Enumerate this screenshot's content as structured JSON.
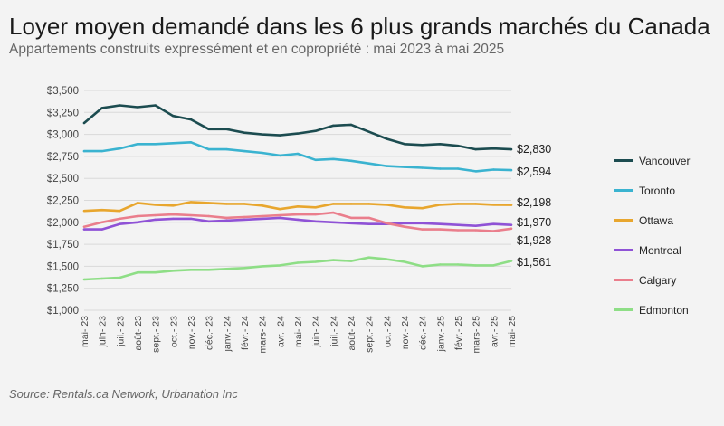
{
  "header": {
    "title": "Loyer moyen demandé dans les 6 plus grands marchés du Canada",
    "subtitle": "Appartements construits expressément et en copropriété : mai 2023 à mai 2025"
  },
  "footer": {
    "source": "Source: Rentals.ca Network, Urbanation Inc"
  },
  "chart_data": {
    "type": "line",
    "title": "Loyer moyen demandé dans les 6 plus grands marchés du Canada",
    "subtitle": "Appartements construits expressément et en copropriété : mai 2023 à mai 2025",
    "xlabel": "",
    "ylabel": "",
    "ylim": [
      1000,
      3500
    ],
    "yticks": [
      1000,
      1250,
      1500,
      1750,
      2000,
      2250,
      2500,
      2750,
      3000,
      3250,
      3500
    ],
    "ytick_labels": [
      "$1,000",
      "$1,250",
      "$1,500",
      "$1,750",
      "$2,000",
      "$2,250",
      "$2,500",
      "$2,750",
      "$3,000",
      "$3,250",
      "$3,500"
    ],
    "grid": true,
    "legend_position": "right",
    "categories": [
      "mai- 23",
      "juin- 23",
      "juil.- 23",
      "août- 23",
      "sept.- 23",
      "oct.- 23",
      "nov.- 23",
      "déc.- 23",
      "janv.- 24",
      "févr.- 24",
      "mars- 24",
      "avr.- 24",
      "mai- 24",
      "juin- 24",
      "juil.- 24",
      "août- 24",
      "sept.- 24",
      "oct.- 24",
      "nov.- 24",
      "déc.- 24",
      "janv.- 25",
      "févr.- 25",
      "mars- 25",
      "avr.- 25",
      "mai- 25"
    ],
    "series": [
      {
        "name": "Vancouver",
        "color": "#1c4c50",
        "end_label": "$2,830",
        "values": [
          3130,
          3300,
          3330,
          3310,
          3330,
          3210,
          3170,
          3060,
          3060,
          3020,
          3000,
          2990,
          3010,
          3040,
          3100,
          3110,
          3030,
          2950,
          2890,
          2880,
          2890,
          2870,
          2830,
          2840,
          2830
        ]
      },
      {
        "name": "Toronto",
        "color": "#3ab3d0",
        "end_label": "$2,594",
        "values": [
          2810,
          2810,
          2840,
          2890,
          2890,
          2900,
          2910,
          2830,
          2830,
          2810,
          2790,
          2760,
          2780,
          2710,
          2720,
          2700,
          2670,
          2640,
          2630,
          2620,
          2610,
          2610,
          2580,
          2600,
          2594
        ]
      },
      {
        "name": "Ottawa",
        "color": "#e8a62e",
        "end_label": "$2,198",
        "values": [
          2130,
          2140,
          2130,
          2220,
          2200,
          2190,
          2230,
          2220,
          2210,
          2210,
          2190,
          2150,
          2180,
          2170,
          2210,
          2210,
          2210,
          2200,
          2170,
          2160,
          2200,
          2210,
          2210,
          2200,
          2198
        ]
      },
      {
        "name": "Montreal",
        "color": "#8f52d6",
        "end_label": "$1,970",
        "values": [
          1920,
          1920,
          1980,
          2000,
          2030,
          2040,
          2040,
          2010,
          2020,
          2030,
          2040,
          2050,
          2030,
          2010,
          2000,
          1990,
          1980,
          1980,
          1990,
          1990,
          1980,
          1970,
          1960,
          1980,
          1970
        ]
      },
      {
        "name": "Calgary",
        "color": "#ea7e8c",
        "end_label": "$1,928",
        "values": [
          1950,
          2000,
          2040,
          2070,
          2080,
          2090,
          2080,
          2070,
          2050,
          2060,
          2070,
          2080,
          2090,
          2090,
          2110,
          2050,
          2050,
          1990,
          1950,
          1920,
          1920,
          1910,
          1910,
          1900,
          1928
        ]
      },
      {
        "name": "Edmonton",
        "color": "#8ede86",
        "end_label": "$1,561",
        "values": [
          1350,
          1360,
          1370,
          1430,
          1430,
          1450,
          1460,
          1460,
          1470,
          1480,
          1500,
          1510,
          1540,
          1550,
          1570,
          1560,
          1600,
          1580,
          1550,
          1500,
          1520,
          1520,
          1510,
          1510,
          1561
        ]
      }
    ]
  }
}
